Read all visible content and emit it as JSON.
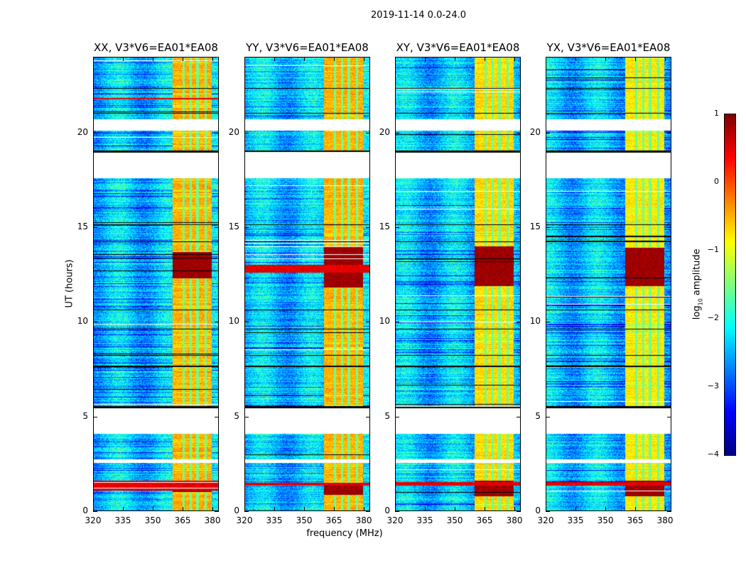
{
  "chart_data": {
    "type": "heatmap",
    "title": "2019-11-14 0.0-24.0",
    "xlabel": "frequency (MHz)",
    "ylabel": "UT (hours)",
    "xlim": [
      320,
      383.2
    ],
    "ylim": [
      0,
      24
    ],
    "xticks": [
      "320",
      "335",
      "350",
      "365",
      "380"
    ],
    "xtick_values": [
      320,
      335,
      350,
      365,
      380
    ],
    "yticks": [
      "0",
      "5",
      "10",
      "15",
      "20"
    ],
    "ytick_values": [
      0,
      5,
      10,
      15,
      20
    ],
    "colormap": "jet",
    "colorbar": {
      "label": "log10 amplitude",
      "label_main": "log",
      "label_sub": "10",
      "label_rest": " amplitude",
      "range": [
        -4,
        1
      ],
      "ticks": [
        "1",
        "0",
        "−1",
        "−2",
        "−3",
        "−4"
      ],
      "tick_values": [
        1,
        0,
        -1,
        -2,
        -3,
        -4
      ]
    },
    "data_gaps_hours": [
      [
        20.1,
        20.7
      ],
      [
        17.6,
        18.95
      ],
      [
        4.1,
        5.45
      ],
      [
        2.55,
        2.75
      ]
    ],
    "flagged_lines_hours": [
      [
        18.95,
        19.05
      ],
      [
        5.45,
        5.55
      ],
      [
        10.6,
        10.65
      ],
      [
        9.6,
        9.65
      ],
      [
        8.2,
        8.25
      ],
      [
        7.6,
        7.7
      ],
      [
        14.2,
        14.25
      ],
      [
        15.1,
        15.15
      ],
      [
        21.0,
        21.05
      ],
      [
        22.3,
        22.35
      ],
      [
        13.3,
        13.33
      ],
      [
        11.8,
        11.83
      ]
    ],
    "rfi_band_mhz": [
      360,
      379.5
    ],
    "rfi_notches_mhz": [
      365.5,
      369,
      372.5,
      376.5
    ],
    "panels": [
      {
        "title": "XX, V3*V6=EA01*EA08",
        "strong_bursts_hours": [
          [
            12.3,
            13.7
          ],
          [
            1.0,
            1.6
          ]
        ],
        "broadband_bursts_hours": [
          [
            1.1,
            1.6
          ],
          [
            21.75,
            21.82
          ]
        ],
        "band_level": -0.5
      },
      {
        "title": "YY, V3*V6=EA01*EA08",
        "strong_bursts_hours": [
          [
            11.8,
            14.0
          ],
          [
            0.85,
            1.5
          ]
        ],
        "broadband_bursts_hours": [
          [
            12.6,
            13.0
          ],
          [
            1.35,
            1.5
          ]
        ],
        "band_level": -0.5
      },
      {
        "title": "XY, V3*V6=EA01*EA08",
        "strong_bursts_hours": [
          [
            11.9,
            14.0
          ],
          [
            0.8,
            1.6
          ]
        ],
        "broadband_bursts_hours": [
          [
            1.35,
            1.55
          ]
        ],
        "band_level": -0.7
      },
      {
        "title": "YX, V3*V6=EA01*EA08",
        "strong_bursts_hours": [
          [
            11.9,
            13.9
          ],
          [
            0.8,
            1.6
          ]
        ],
        "broadband_bursts_hours": [
          [
            1.35,
            1.55
          ]
        ],
        "band_level": -0.8
      }
    ]
  }
}
